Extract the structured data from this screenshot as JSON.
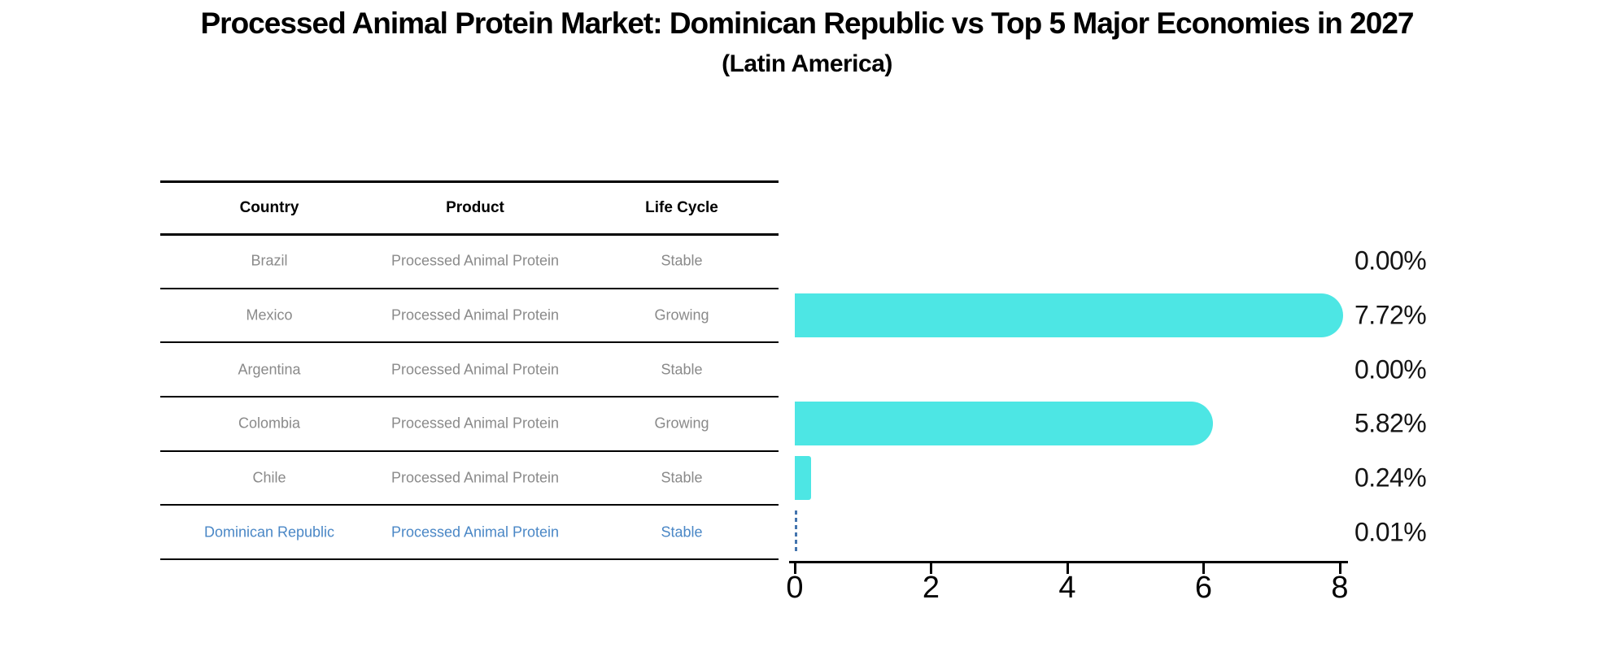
{
  "title": "Processed Animal Protein Market: Dominican Republic vs Top 5 Major Economies in 2027",
  "subtitle": "(Latin America)",
  "table": {
    "headers": [
      "Country",
      "Product",
      "Life Cycle"
    ],
    "rows": [
      {
        "country": "Brazil",
        "product": "Processed Animal Protein",
        "life_cycle": "Stable",
        "highlight": false
      },
      {
        "country": "Mexico",
        "product": "Processed Animal Protein",
        "life_cycle": "Growing",
        "highlight": false
      },
      {
        "country": "Argentina",
        "product": "Processed Animal Protein",
        "life_cycle": "Stable",
        "highlight": false
      },
      {
        "country": "Colombia",
        "product": "Processed Animal Protein",
        "life_cycle": "Growing",
        "highlight": false
      },
      {
        "country": "Chile",
        "product": "Processed Animal Protein",
        "life_cycle": "Stable",
        "highlight": false
      },
      {
        "country": "Dominican Republic",
        "product": "Processed Animal Protein",
        "life_cycle": "Stable",
        "highlight": true
      }
    ]
  },
  "chart_data": {
    "type": "bar",
    "orientation": "horizontal",
    "title": "Processed Animal Protein Market: Dominican Republic vs Top 5 Major Economies in 2027",
    "subtitle": "(Latin America)",
    "categories": [
      "Brazil",
      "Mexico",
      "Argentina",
      "Colombia",
      "Chile",
      "Dominican Republic"
    ],
    "values": [
      0.0,
      7.72,
      0.0,
      5.82,
      0.24,
      0.01
    ],
    "value_labels": [
      "0.00%",
      "7.72%",
      "0.00%",
      "5.82%",
      "0.24%",
      "0.01%"
    ],
    "xlim": [
      0,
      8
    ],
    "x_ticks": [
      "0",
      "2",
      "4",
      "6",
      "8"
    ],
    "grid": false,
    "legend": false,
    "highlight_index": 5,
    "highlight_style": "dashed-line"
  },
  "colors": {
    "bar": "#4DE6E4",
    "highlight_text": "#4A87C6",
    "highlight_dash": "#4374AE",
    "row_text": "#8a8a8a",
    "header_text": "#000000",
    "percent_text": "#141414",
    "axis": "#000000",
    "background": "#ffffff"
  }
}
